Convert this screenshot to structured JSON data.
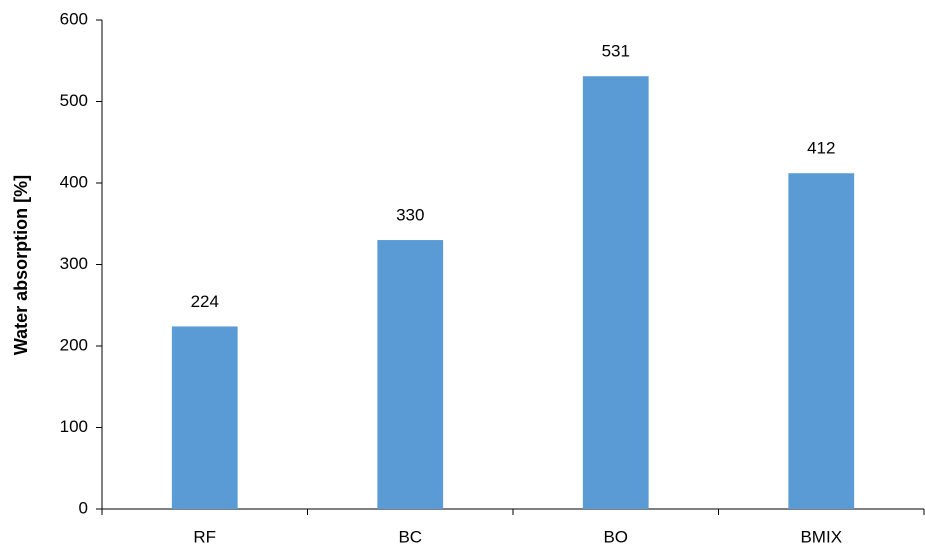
{
  "chart_data": {
    "type": "bar",
    "y_label": "Water absorption [%]",
    "categories": [
      "RF",
      "BC",
      "BO",
      "BMIX"
    ],
    "values": [
      224,
      330,
      531,
      412
    ],
    "color": "#5b9bd5",
    "ylim": [
      0,
      600
    ],
    "yticks": [
      0,
      100,
      200,
      300,
      400,
      500,
      600
    ],
    "grid": false,
    "data_labels": true
  }
}
